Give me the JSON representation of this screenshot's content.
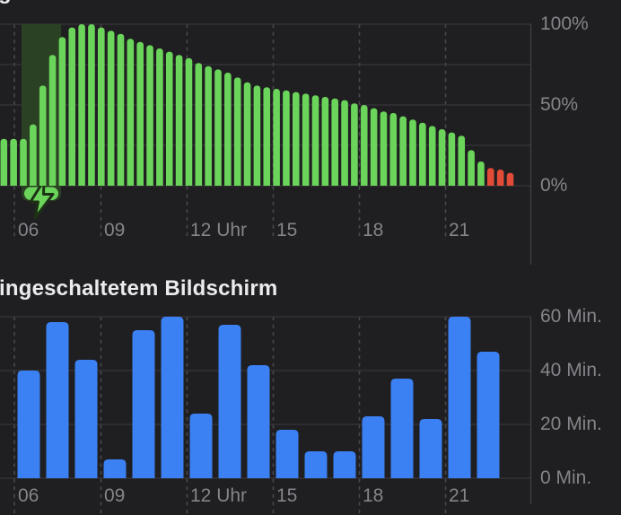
{
  "header": {
    "clipped_title_fragment": "g"
  },
  "chart_data": [
    {
      "type": "bar",
      "id": "battery_level",
      "unit": "%",
      "ylim": [
        0,
        100
      ],
      "y_axis_side": "right",
      "grid": true,
      "y_ticks": [
        "100%",
        "50%",
        "0%"
      ],
      "x_ticks": [
        "06",
        "09",
        "12 Uhr",
        "15",
        "18",
        "21"
      ],
      "bars_per_hour": 3,
      "values": [
        29,
        29,
        29,
        38,
        62,
        81,
        92,
        98,
        100,
        100,
        98,
        96,
        94,
        91,
        89,
        87,
        85,
        83,
        81,
        79,
        76,
        74,
        72,
        70,
        67,
        64,
        62,
        61,
        60,
        59,
        58,
        57,
        56,
        55,
        54,
        53,
        51,
        50,
        48,
        46,
        45,
        43,
        41,
        39,
        37,
        35,
        33,
        31,
        22,
        15,
        11,
        10,
        8
      ],
      "low_from_index": 50,
      "bar_color": "#6bd45b",
      "low_bar_color": "#e24b38",
      "charging_overlay": {
        "color": "#2b4124",
        "bolt_color": "#6bd45b",
        "icon": "charging-bolt-icon"
      }
    },
    {
      "type": "bar",
      "id": "screen_on_activity",
      "title_visible": "ingeschaltetem Bildschirm",
      "unit": "Min.",
      "ylim": [
        0,
        60
      ],
      "y_axis_side": "right",
      "grid": true,
      "y_ticks": [
        "60 Min.",
        "40 Min.",
        "20 Min.",
        "0 Min."
      ],
      "x_ticks": [
        "06",
        "09",
        "12 Uhr",
        "15",
        "18",
        "21"
      ],
      "hours": [
        "06",
        "07",
        "08",
        "09",
        "10",
        "11",
        "12",
        "13",
        "14",
        "15",
        "16",
        "17",
        "18",
        "19",
        "20",
        "21",
        "22"
      ],
      "values": [
        40,
        58,
        44,
        7,
        55,
        60,
        24,
        57,
        42,
        18,
        10,
        10,
        23,
        37,
        22,
        60,
        47
      ],
      "bar_color": "#3b81f4"
    }
  ]
}
